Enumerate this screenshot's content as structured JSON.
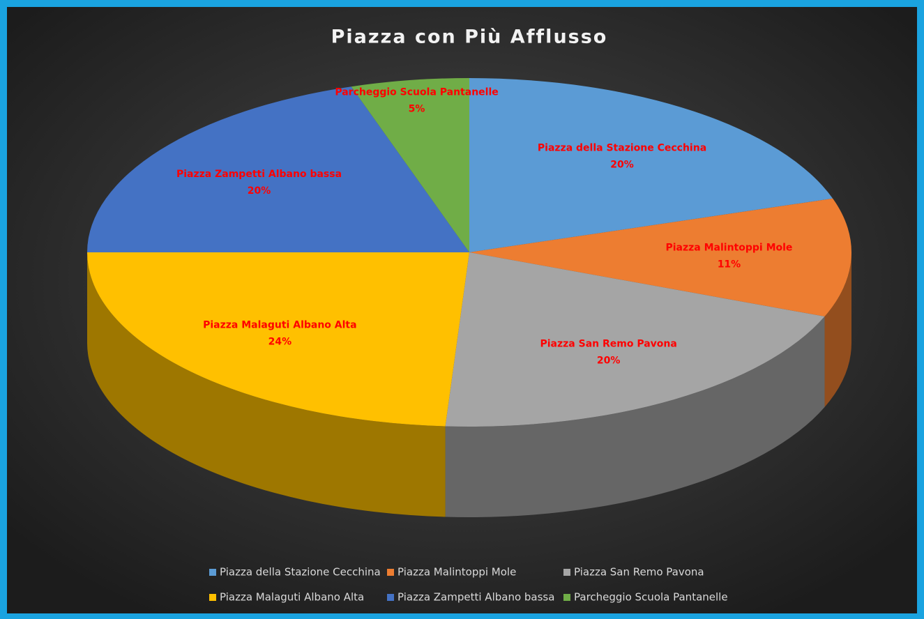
{
  "chart_data": {
    "type": "pie",
    "title": "Piazza con Più Afflusso",
    "categories": [
      "Piazza della Stazione Cecchina",
      "Piazza Malintoppi Mole",
      "Piazza San Remo Pavona",
      "Piazza Malaguti Albano Alta",
      "Piazza Zampetti Albano bassa",
      "Parcheggio Scuola Pantanelle"
    ],
    "values": [
      20,
      11,
      20,
      24,
      20,
      5
    ],
    "value_labels": [
      "20%",
      "11%",
      "20%",
      "24%",
      "20%",
      "5%"
    ],
    "colors": [
      "#5b9bd5",
      "#ed7d31",
      "#a5a5a5",
      "#ffc000",
      "#4472c4",
      "#70ad47"
    ],
    "legend": "bottom"
  }
}
